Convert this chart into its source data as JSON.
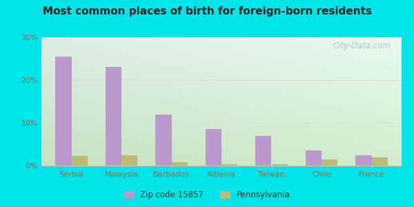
{
  "title": "Most common places of birth for foreign-born residents",
  "categories": [
    "Serbia",
    "Malaysia",
    "Barbados",
    "Albania",
    "Taiwan",
    "Chile",
    "France"
  ],
  "zip_values": [
    25.5,
    23.0,
    12.0,
    8.5,
    7.0,
    3.5,
    2.5
  ],
  "pa_values": [
    2.2,
    2.5,
    0.8,
    0.4,
    0.4,
    1.5,
    2.0
  ],
  "zip_color": "#bb99cc",
  "pa_color": "#bbbb77",
  "ylim": [
    0,
    30
  ],
  "yticks": [
    0,
    10,
    20,
    30
  ],
  "ytick_labels": [
    "0%",
    "10%",
    "20%",
    "30%"
  ],
  "legend_zip": "Zip code 15857",
  "legend_pa": "Pennsylvania",
  "outer_bg": "#00e5e8",
  "watermark": "City-Data.com"
}
